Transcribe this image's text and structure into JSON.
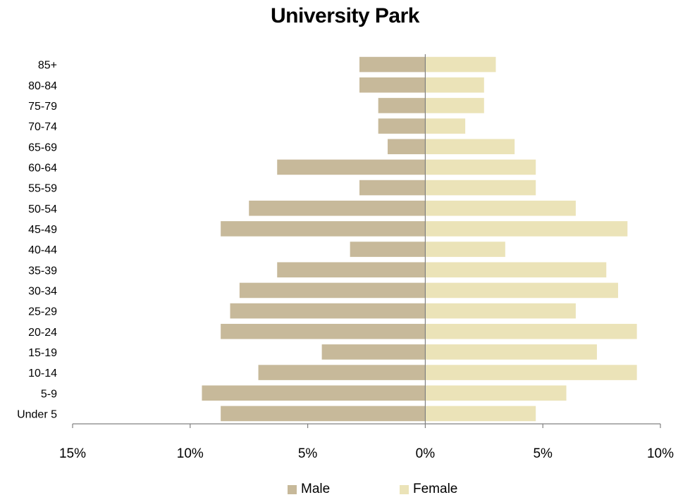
{
  "colors": {
    "male": "#c7b99a",
    "female": "#ebe3b8",
    "axis": "#808080"
  },
  "chart_data": {
    "type": "bar",
    "orientation": "horizontal",
    "title": "University Park",
    "categories": [
      "Under 5",
      "5-9",
      "10-14",
      "15-19",
      "20-24",
      "25-29",
      "30-34",
      "35-39",
      "40-44",
      "45-49",
      "50-54",
      "55-59",
      "60-64",
      "65-69",
      "70-74",
      "75-79",
      "80-84",
      "85+"
    ],
    "series": [
      {
        "name": "Male",
        "values": [
          -8.7,
          -9.5,
          -7.1,
          -4.4,
          -8.7,
          -8.3,
          -7.9,
          -6.3,
          -3.2,
          -8.7,
          -7.5,
          -2.8,
          -6.3,
          -1.6,
          -2.0,
          -2.0,
          -2.8,
          -2.8
        ]
      },
      {
        "name": "Female",
        "values": [
          4.7,
          6.0,
          9.0,
          7.3,
          9.0,
          6.4,
          8.2,
          7.7,
          3.4,
          8.6,
          6.4,
          4.7,
          4.7,
          3.8,
          1.7,
          2.5,
          2.5,
          3.0
        ]
      }
    ],
    "xlim": [
      -15,
      10
    ],
    "xticks": [
      -15,
      -10,
      -5,
      0,
      5,
      10
    ],
    "xtick_labels": [
      "15%",
      "10%",
      "5%",
      "0%",
      "5%",
      "10%"
    ],
    "grid": false,
    "legend_position": "bottom"
  }
}
